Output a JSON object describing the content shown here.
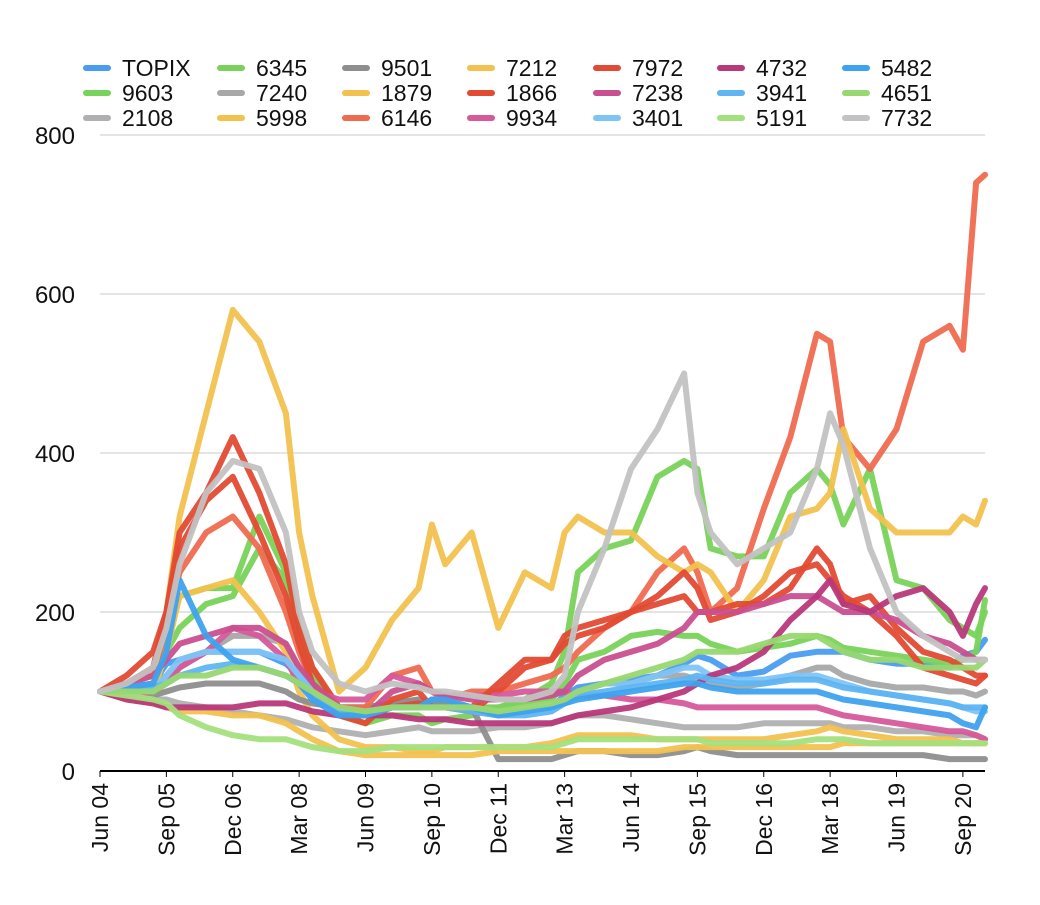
{
  "chart_data": {
    "type": "line",
    "title": "",
    "xlabel": "",
    "ylabel": "",
    "ylim": [
      0,
      800
    ],
    "yticks": [
      0,
      200,
      400,
      600,
      800
    ],
    "grid": true,
    "legend_position": "top",
    "x_ticks": [
      "Jun 04",
      "Sep 05",
      "Dec 06",
      "Mar 08",
      "Jun 09",
      "Sep 10",
      "Dec 11",
      "Mar 13",
      "Jun 14",
      "Sep 15",
      "Dec 16",
      "Mar 18",
      "Jun 19",
      "Sep 20"
    ],
    "x": [
      "Jun 04",
      "Dec 04",
      "Jun 05",
      "Sep 05",
      "Dec 05",
      "Jun 06",
      "Dec 06",
      "Jun 07",
      "Dec 07",
      "Mar 08",
      "Jun 08",
      "Dec 08",
      "Jun 09",
      "Dec 09",
      "Jun 10",
      "Sep 10",
      "Dec 10",
      "Jun 11",
      "Dec 11",
      "Jun 12",
      "Dec 12",
      "Mar 13",
      "Jun 13",
      "Dec 13",
      "Jun 14",
      "Dec 14",
      "Jun 15",
      "Sep 15",
      "Dec 15",
      "Jun 16",
      "Dec 16",
      "Jun 17",
      "Dec 17",
      "Mar 18",
      "Jun 18",
      "Dec 18",
      "Jun 19",
      "Dec 19",
      "Jun 20",
      "Sep 20",
      "Dec 20",
      "Feb 21"
    ],
    "series": [
      {
        "name": "TOPIX",
        "color": "#4a9cf0",
        "values": [
          100,
          105,
          110,
          135,
          140,
          150,
          150,
          150,
          135,
          120,
          105,
          80,
          80,
          85,
          80,
          90,
          90,
          75,
          70,
          75,
          80,
          95,
          105,
          110,
          115,
          120,
          135,
          145,
          140,
          120,
          125,
          145,
          150,
          150,
          150,
          140,
          135,
          135,
          130,
          145,
          150,
          165
        ]
      },
      {
        "name": "9603",
        "color": "#79d35a",
        "values": [
          100,
          110,
          130,
          150,
          180,
          210,
          220,
          280,
          240,
          160,
          120,
          80,
          70,
          80,
          85,
          80,
          80,
          80,
          80,
          85,
          90,
          110,
          140,
          150,
          170,
          175,
          170,
          170,
          160,
          150,
          155,
          160,
          170,
          165,
          155,
          150,
          145,
          140,
          135,
          140,
          150,
          215
        ]
      },
      {
        "name": "2108",
        "color": "#b0b0b0",
        "values": [
          100,
          95,
          90,
          90,
          85,
          80,
          75,
          70,
          65,
          60,
          55,
          50,
          45,
          50,
          55,
          50,
          50,
          50,
          55,
          55,
          60,
          65,
          70,
          70,
          65,
          60,
          55,
          55,
          55,
          55,
          60,
          60,
          60,
          60,
          55,
          55,
          50,
          50,
          45,
          45,
          45,
          40
        ]
      },
      {
        "name": "6345",
        "color": "#79d35a",
        "values": [
          100,
          110,
          120,
          170,
          220,
          230,
          230,
          320,
          250,
          180,
          130,
          70,
          60,
          70,
          70,
          60,
          65,
          70,
          80,
          90,
          110,
          150,
          250,
          280,
          290,
          370,
          390,
          380,
          280,
          270,
          270,
          350,
          380,
          360,
          310,
          380,
          240,
          230,
          190,
          180,
          170,
          200
        ]
      },
      {
        "name": "7240",
        "color": "#a8a8a8",
        "values": [
          100,
          100,
          110,
          120,
          130,
          150,
          170,
          170,
          160,
          130,
          110,
          80,
          75,
          85,
          90,
          85,
          85,
          80,
          75,
          75,
          80,
          90,
          100,
          110,
          110,
          120,
          120,
          115,
          110,
          105,
          110,
          120,
          130,
          130,
          120,
          110,
          105,
          105,
          100,
          100,
          95,
          100
        ]
      },
      {
        "name": "5998",
        "color": "#f2c14e",
        "values": [
          100,
          95,
          100,
          150,
          220,
          230,
          240,
          200,
          150,
          100,
          70,
          40,
          30,
          30,
          25,
          25,
          30,
          30,
          30,
          30,
          35,
          40,
          45,
          45,
          45,
          40,
          40,
          40,
          40,
          40,
          40,
          45,
          50,
          55,
          50,
          45,
          40,
          40,
          40,
          35,
          35,
          35
        ]
      },
      {
        "name": "9501",
        "color": "#8e8e8e",
        "values": [
          100,
          100,
          95,
          100,
          105,
          110,
          110,
          110,
          100,
          90,
          85,
          80,
          80,
          85,
          90,
          85,
          85,
          80,
          15,
          15,
          15,
          20,
          25,
          25,
          20,
          20,
          25,
          30,
          25,
          20,
          20,
          20,
          20,
          20,
          20,
          20,
          20,
          20,
          15,
          15,
          15,
          15
        ]
      },
      {
        "name": "1879",
        "color": "#f2c14e",
        "values": [
          100,
          90,
          85,
          80,
          75,
          75,
          70,
          70,
          60,
          50,
          40,
          25,
          20,
          20,
          20,
          20,
          20,
          20,
          25,
          25,
          25,
          25,
          25,
          25,
          25,
          25,
          30,
          30,
          30,
          30,
          30,
          30,
          30,
          30,
          35,
          35,
          35,
          35,
          35,
          35,
          35,
          35
        ]
      },
      {
        "name": "6146",
        "color": "#ef6b50",
        "values": [
          100,
          110,
          120,
          180,
          250,
          300,
          320,
          280,
          200,
          150,
          110,
          80,
          80,
          120,
          130,
          100,
          90,
          100,
          100,
          110,
          120,
          130,
          150,
          180,
          200,
          250,
          280,
          250,
          200,
          230,
          330,
          420,
          550,
          540,
          420,
          380,
          430,
          540,
          560,
          530,
          740,
          750
        ]
      },
      {
        "name": "7212",
        "color": "#f2c14e",
        "values": [
          100,
          110,
          120,
          200,
          320,
          450,
          580,
          540,
          450,
          300,
          220,
          100,
          130,
          190,
          230,
          310,
          260,
          300,
          180,
          250,
          230,
          300,
          320,
          300,
          300,
          270,
          250,
          260,
          250,
          200,
          240,
          320,
          330,
          350,
          430,
          330,
          300,
          300,
          300,
          320,
          310,
          340
        ]
      },
      {
        "name": "1866",
        "color": "#e34a33",
        "values": [
          100,
          110,
          130,
          200,
          300,
          350,
          420,
          350,
          260,
          180,
          130,
          80,
          70,
          80,
          85,
          80,
          80,
          75,
          100,
          130,
          140,
          160,
          170,
          180,
          200,
          220,
          250,
          230,
          190,
          200,
          220,
          250,
          260,
          240,
          220,
          200,
          170,
          130,
          120,
          115,
          110,
          120
        ]
      },
      {
        "name": "9934",
        "color": "#d65a9a",
        "values": [
          100,
          95,
          100,
          110,
          130,
          150,
          180,
          170,
          140,
          110,
          100,
          90,
          90,
          120,
          110,
          100,
          95,
          95,
          95,
          100,
          100,
          100,
          95,
          95,
          90,
          90,
          85,
          80,
          80,
          80,
          80,
          80,
          80,
          75,
          70,
          65,
          60,
          55,
          50,
          50,
          45,
          40
        ]
      },
      {
        "name": "7972",
        "color": "#e34a33",
        "values": [
          100,
          120,
          150,
          200,
          280,
          340,
          370,
          300,
          220,
          160,
          110,
          70,
          60,
          90,
          100,
          80,
          80,
          80,
          110,
          140,
          140,
          170,
          180,
          190,
          200,
          210,
          220,
          200,
          200,
          210,
          210,
          230,
          280,
          260,
          210,
          220,
          180,
          150,
          140,
          130,
          120,
          120
        ]
      },
      {
        "name": "7238",
        "color": "#c94f8f",
        "values": [
          100,
          110,
          120,
          140,
          160,
          170,
          180,
          180,
          160,
          130,
          110,
          80,
          70,
          100,
          110,
          100,
          95,
          90,
          90,
          90,
          95,
          100,
          120,
          140,
          150,
          160,
          180,
          200,
          200,
          200,
          210,
          220,
          220,
          210,
          200,
          200,
          190,
          170,
          160,
          150,
          140,
          140
        ]
      },
      {
        "name": "3401",
        "color": "#7ec4f5",
        "values": [
          100,
          100,
          100,
          120,
          140,
          150,
          150,
          150,
          140,
          120,
          100,
          75,
          70,
          80,
          80,
          80,
          80,
          80,
          75,
          75,
          80,
          90,
          100,
          110,
          110,
          120,
          130,
          130,
          120,
          115,
          115,
          120,
          120,
          115,
          110,
          100,
          95,
          90,
          85,
          80,
          75,
          75
        ]
      },
      {
        "name": "4732",
        "color": "#b8387a",
        "values": [
          100,
          90,
          85,
          80,
          80,
          80,
          80,
          85,
          85,
          80,
          75,
          70,
          70,
          70,
          65,
          65,
          65,
          60,
          60,
          60,
          60,
          65,
          70,
          75,
          80,
          90,
          100,
          110,
          120,
          130,
          150,
          190,
          220,
          240,
          210,
          200,
          220,
          230,
          200,
          170,
          210,
          230
        ]
      },
      {
        "name": "3941",
        "color": "#5eb5f2",
        "values": [
          100,
          100,
          105,
          110,
          120,
          130,
          135,
          130,
          120,
          110,
          95,
          75,
          70,
          80,
          80,
          80,
          80,
          75,
          70,
          70,
          75,
          85,
          95,
          100,
          105,
          110,
          115,
          120,
          115,
          110,
          110,
          115,
          115,
          110,
          105,
          100,
          95,
          90,
          85,
          80,
          80,
          80
        ]
      },
      {
        "name": "5191",
        "color": "#a3e07e",
        "values": [
          100,
          95,
          90,
          85,
          70,
          55,
          45,
          40,
          40,
          35,
          30,
          25,
          25,
          30,
          30,
          30,
          30,
          30,
          30,
          30,
          30,
          35,
          40,
          40,
          40,
          40,
          40,
          40,
          35,
          35,
          35,
          35,
          40,
          40,
          40,
          35,
          35,
          35,
          35,
          35,
          35,
          35
        ]
      },
      {
        "name": "5482",
        "color": "#3ea2ee",
        "values": [
          100,
          105,
          110,
          150,
          240,
          170,
          140,
          130,
          120,
          110,
          90,
          70,
          70,
          80,
          80,
          90,
          90,
          80,
          70,
          75,
          80,
          85,
          90,
          95,
          100,
          105,
          110,
          110,
          105,
          100,
          100,
          100,
          100,
          95,
          90,
          85,
          80,
          75,
          70,
          60,
          55,
          80
        ]
      },
      {
        "name": "4651",
        "color": "#98d870",
        "values": [
          100,
          100,
          100,
          110,
          120,
          120,
          130,
          130,
          120,
          110,
          100,
          80,
          75,
          80,
          80,
          80,
          80,
          80,
          75,
          80,
          85,
          90,
          100,
          110,
          120,
          130,
          140,
          150,
          150,
          150,
          160,
          170,
          170,
          160,
          150,
          140,
          140,
          130,
          130,
          130,
          130,
          140
        ]
      },
      {
        "name": "7732",
        "color": "#c2c2c2",
        "values": [
          100,
          110,
          130,
          180,
          260,
          350,
          390,
          380,
          300,
          200,
          150,
          110,
          100,
          110,
          105,
          100,
          100,
          95,
          90,
          90,
          100,
          120,
          200,
          280,
          380,
          430,
          500,
          350,
          300,
          260,
          280,
          300,
          380,
          450,
          410,
          280,
          200,
          170,
          150,
          140,
          140,
          140
        ]
      }
    ]
  }
}
